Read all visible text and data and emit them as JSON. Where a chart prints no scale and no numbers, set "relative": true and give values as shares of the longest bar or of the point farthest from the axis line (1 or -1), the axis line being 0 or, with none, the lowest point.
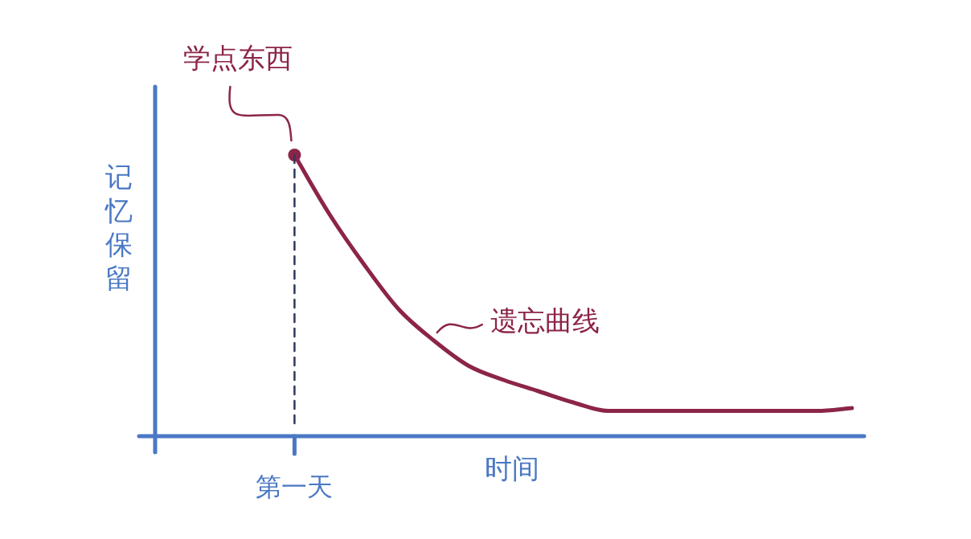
{
  "chart_data": {
    "type": "line",
    "relative": true,
    "xlabel": "时间",
    "ylabel": "记忆保留",
    "categories": [
      null,
      null,
      null,
      null,
      null,
      null,
      null,
      null,
      null,
      null,
      null,
      null,
      null,
      null,
      null,
      null,
      null,
      null,
      null,
      null,
      null
    ],
    "series": [
      {
        "color": "#8c2449",
        "values": [
          null,
          null,
          null,
          null,
          1,
          0.79,
          0.61,
          0.45,
          0.34,
          0.25,
          0.2,
          0.16,
          0.12,
          0.09,
          0.09,
          0.09,
          0.09,
          0.09,
          0.09,
          0.09,
          0.1
        ]
      }
    ],
    "annotations": [
      "学点东西",
      "第一天",
      "遗忘曲线"
    ],
    "grid": false,
    "legend": false
  }
}
